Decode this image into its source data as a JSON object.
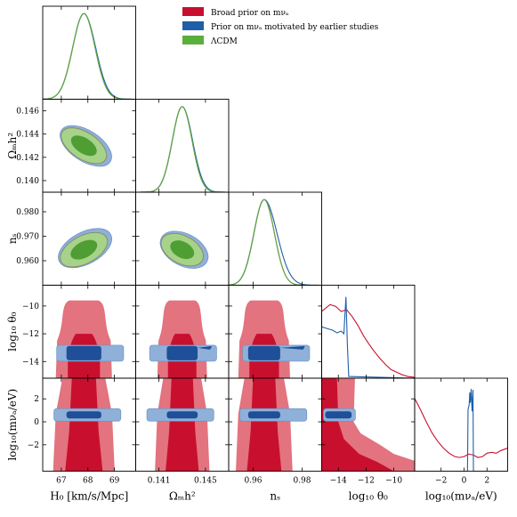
{
  "chart_data": {
    "type": "corner",
    "parameters": [
      {
        "key": "H0",
        "label": "H₀ [km/s/Mpc]",
        "lim": [
          66.3,
          69.8
        ],
        "ticks": [
          67,
          68,
          69
        ],
        "tick_labels": [
          "67",
          "68",
          "69"
        ]
      },
      {
        "key": "omh2",
        "label": "Ωₘh²",
        "lim": [
          0.139,
          0.147
        ],
        "ticks": [
          0.14,
          0.142,
          0.144,
          0.146
        ],
        "tick_labels": [
          "0.140",
          "0.142",
          "0.144",
          "0.146"
        ],
        "xticks": [
          0.141,
          0.145
        ],
        "xtick_labels": [
          "0.141",
          "0.145"
        ]
      },
      {
        "key": "ns",
        "label": "nₛ",
        "lim": [
          0.95,
          0.988
        ],
        "ticks": [
          0.96,
          0.97,
          0.98
        ],
        "tick_labels": [
          "0.960",
          "0.970",
          "0.980"
        ],
        "xticks": [
          0.96,
          0.98
        ],
        "xtick_labels": [
          "0.96",
          "0.98"
        ]
      },
      {
        "key": "logtheta",
        "label": "log₁₀ θ₀",
        "lim": [
          -15.2,
          -8.5
        ],
        "ticks": [
          -14,
          -12,
          -10
        ],
        "tick_labels": [
          "−14",
          "−12",
          "−10"
        ]
      },
      {
        "key": "logmnu",
        "label": "log₁₀(mνₐ/eV)",
        "lim": [
          -4.3,
          3.8
        ],
        "ticks": [
          -2,
          0,
          2
        ],
        "tick_labels": [
          "−2",
          "0",
          "2"
        ]
      }
    ],
    "legend": {
      "placement": "top-right",
      "entries": [
        {
          "label": "Broad prior on mνₐ",
          "color": "#c8102e"
        },
        {
          "label": "Prior on mνₐ motivated by earlier studies",
          "color": "#1f5fa8"
        },
        {
          "label": "ΛCDM",
          "color": "#5aae3c"
        }
      ]
    },
    "series": {
      "broad": {
        "color": "#c8102e",
        "fill_outer": "#e2737f",
        "fill_inner": "#c8102e"
      },
      "motivated": {
        "color": "#1f5fa8",
        "fill_outer": "#8fb0d8",
        "fill_inner": "#1f4f98"
      },
      "lcdm": {
        "color": "#5aae3c",
        "fill_outer": "#a6d28a",
        "fill_inner": "#4e9e33"
      }
    },
    "marginals": {
      "H0": {
        "mean": 67.85,
        "sigma": 0.42
      },
      "omh2": {
        "mean": 0.143,
        "sigma": 0.00085
      },
      "ns": {
        "mean": 0.9645,
        "sigma": 0.0042
      },
      "logtheta": {
        "peak_x": -13.4,
        "description": "broad prior curve decreasing from -14.5 toward -9"
      },
      "logmnu": {
        "peak_x": 0.6,
        "description": "motivated prior narrow spike near 0.5-0.7; broad prior slowly varying"
      }
    }
  }
}
